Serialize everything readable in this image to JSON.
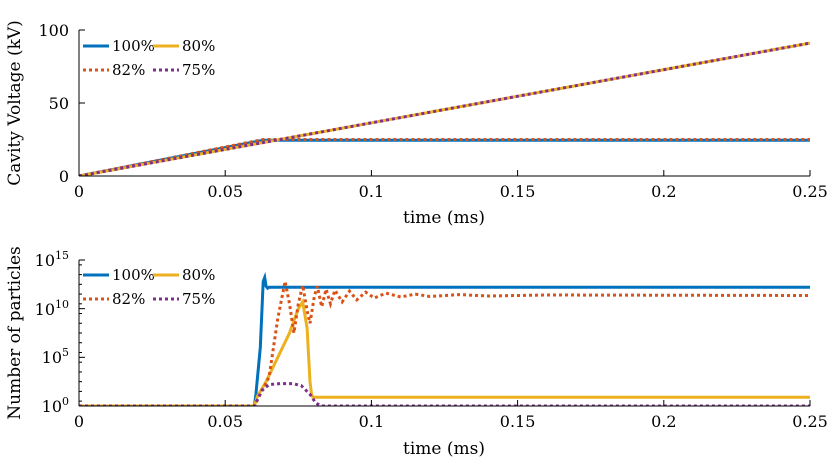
{
  "colors": {
    "s100": "#0072BD",
    "s82": "#D95319",
    "s80": "#EDB120",
    "s75": "#7E2F8E"
  },
  "chart_data": [
    {
      "type": "line",
      "title": "",
      "xlabel": "time (ms)",
      "ylabel": "Cavity Voltage (kV)",
      "xlim": [
        0,
        0.25
      ],
      "ylim": [
        0,
        100
      ],
      "xticks": [
        0,
        0.05,
        0.1,
        0.15,
        0.2,
        0.25
      ],
      "xtick_labels": [
        "0",
        "0.05",
        "0.1",
        "0.15",
        "0.2",
        "0.25"
      ],
      "yticks": [
        0,
        50,
        100
      ],
      "ytick_labels": [
        "0",
        "50",
        "100"
      ],
      "legend": {
        "location": "top-left",
        "entries": [
          "100%",
          "80%",
          "82%",
          "75%"
        ]
      },
      "series": [
        {
          "name": "100%",
          "style": "solid",
          "color": "#0072BD",
          "points": [
            [
              0,
              0
            ],
            [
              0.063,
              24.5
            ],
            [
              0.25,
              24.5
            ]
          ]
        },
        {
          "name": "80%",
          "style": "solid",
          "color": "#EDB120",
          "points": [
            [
              0,
              0
            ],
            [
              0.25,
              91
            ]
          ]
        },
        {
          "name": "82%",
          "style": "dotted",
          "color": "#D95319",
          "points": [
            [
              0,
              0
            ],
            [
              0.063,
              25
            ],
            [
              0.25,
              25
            ]
          ]
        },
        {
          "name": "75%",
          "style": "dotted",
          "color": "#7E2F8E",
          "points": [
            [
              0,
              0
            ],
            [
              0.25,
              91
            ]
          ]
        }
      ]
    },
    {
      "type": "line",
      "title": "",
      "xlabel": "time (ms)",
      "ylabel": "Number of particles",
      "yscale": "log",
      "xlim": [
        0,
        0.25
      ],
      "ylim_exponent": [
        0,
        15
      ],
      "xticks": [
        0,
        0.05,
        0.1,
        0.15,
        0.2,
        0.25
      ],
      "xtick_labels": [
        "0",
        "0.05",
        "0.1",
        "0.15",
        "0.2",
        "0.25"
      ],
      "ytick_bases": [
        "10",
        "10",
        "10",
        "10"
      ],
      "ytick_exponents": [
        "0",
        "5",
        "10",
        "15"
      ],
      "legend": {
        "location": "top-left",
        "entries": [
          "100%",
          "80%",
          "82%",
          "75%"
        ]
      },
      "series": [
        {
          "name": "100%",
          "style": "solid",
          "color": "#0072BD",
          "log10_points": [
            [
              0,
              0
            ],
            [
              0.06,
              0
            ],
            [
              0.0605,
              1.2
            ],
            [
              0.062,
              6
            ],
            [
              0.063,
              12.8
            ],
            [
              0.0635,
              13.2
            ],
            [
              0.064,
              12.3
            ],
            [
              0.0645,
              12.1
            ],
            [
              0.065,
              12.2
            ],
            [
              0.066,
              12.2
            ],
            [
              0.25,
              12.2
            ]
          ]
        },
        {
          "name": "80%",
          "style": "solid",
          "color": "#EDB120",
          "log10_points": [
            [
              0,
              0
            ],
            [
              0.06,
              0
            ],
            [
              0.061,
              1
            ],
            [
              0.064,
              2.5
            ],
            [
              0.068,
              5
            ],
            [
              0.072,
              7.5
            ],
            [
              0.075,
              10
            ],
            [
              0.0765,
              10.7
            ],
            [
              0.078,
              8
            ],
            [
              0.079,
              2.5
            ],
            [
              0.0795,
              1.2
            ],
            [
              0.08,
              0.9
            ],
            [
              0.25,
              0.9
            ]
          ]
        },
        {
          "name": "82%",
          "style": "dotted",
          "color": "#D95319",
          "log10_points": [
            [
              0,
              0
            ],
            [
              0.06,
              0
            ],
            [
              0.065,
              3
            ],
            [
              0.068,
              9
            ],
            [
              0.0705,
              12.8
            ],
            [
              0.072,
              10.5
            ],
            [
              0.0735,
              7.5
            ],
            [
              0.075,
              10.5
            ],
            [
              0.0765,
              12.4
            ],
            [
              0.078,
              9.8
            ],
            [
              0.079,
              8.5
            ],
            [
              0.0805,
              11.3
            ],
            [
              0.0815,
              12.3
            ],
            [
              0.083,
              10.2
            ],
            [
              0.0845,
              12
            ],
            [
              0.086,
              10.5
            ],
            [
              0.0875,
              11.9
            ],
            [
              0.09,
              10.7
            ],
            [
              0.0925,
              11.8
            ],
            [
              0.095,
              10.9
            ],
            [
              0.098,
              11.7
            ],
            [
              0.101,
              11.1
            ],
            [
              0.105,
              11.6
            ],
            [
              0.11,
              11.2
            ],
            [
              0.115,
              11.5
            ],
            [
              0.12,
              11.25
            ],
            [
              0.13,
              11.45
            ],
            [
              0.14,
              11.3
            ],
            [
              0.16,
              11.4
            ],
            [
              0.25,
              11.35
            ]
          ]
        },
        {
          "name": "75%",
          "style": "dotted",
          "color": "#7E2F8E",
          "log10_points": [
            [
              0,
              0
            ],
            [
              0.06,
              0
            ],
            [
              0.0625,
              1.6
            ],
            [
              0.065,
              2.2
            ],
            [
              0.069,
              2.3
            ],
            [
              0.073,
              2.3
            ],
            [
              0.076,
              2.1
            ],
            [
              0.079,
              1.2
            ],
            [
              0.081,
              0.3
            ],
            [
              0.083,
              0
            ],
            [
              0.25,
              0
            ]
          ]
        }
      ]
    }
  ]
}
